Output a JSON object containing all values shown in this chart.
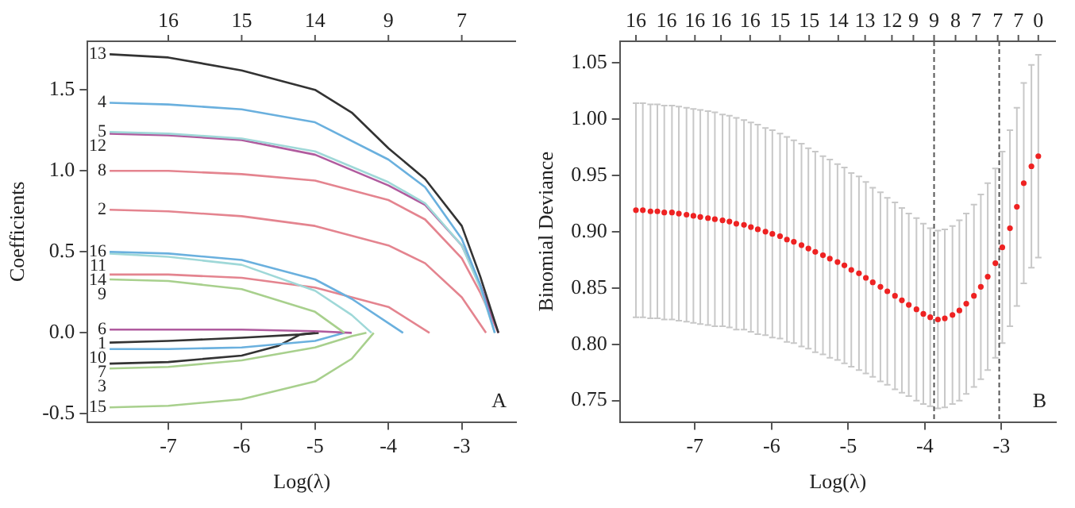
{
  "chart_data": [
    {
      "type": "line",
      "ylabel": "Coefficients",
      "xlabel": "Log(λ)",
      "xlim": [
        -8.1,
        -2.26
      ],
      "ylim": [
        -0.55,
        1.8
      ],
      "xticks": [
        -7,
        -6,
        -5,
        -4,
        -3
      ],
      "yticks": [
        {
          "value": -0.5,
          "label": "-0.5"
        },
        {
          "value": 0,
          "label": "0.0"
        },
        {
          "value": 0.5,
          "label": "0.5"
        },
        {
          "value": 1,
          "label": "1.0"
        },
        {
          "value": 1.5,
          "label": "1.5"
        }
      ],
      "grid": false,
      "legend": false,
      "marker": "none",
      "line_style": "solid",
      "annotations": [
        "A",
        {
          "text": "16",
          "x": -7
        },
        {
          "text": "15",
          "x": -6
        },
        {
          "text": "14",
          "x": -5
        },
        {
          "text": "9",
          "x": -4
        },
        {
          "text": "7",
          "x": -3
        }
      ],
      "series": [
        {
          "name": "13",
          "color": "#333333",
          "x": [
            -7.8,
            -7,
            -6,
            -5,
            -4.5,
            -4,
            -3.5,
            -3,
            -2.75,
            -2.5
          ],
          "values": [
            1.72,
            1.7,
            1.62,
            1.5,
            1.36,
            1.14,
            0.95,
            0.66,
            0.35,
            0
          ]
        },
        {
          "name": "4",
          "color": "#6ab0de",
          "x": [
            -7.8,
            -7,
            -6,
            -5,
            -4,
            -3.5,
            -3,
            -2.75,
            -2.55
          ],
          "values": [
            1.42,
            1.41,
            1.38,
            1.3,
            1.07,
            0.9,
            0.58,
            0.3,
            0
          ]
        },
        {
          "name": "5",
          "color": "#9fd8d8",
          "x": [
            -7.8,
            -7,
            -6,
            -5,
            -4,
            -3.5,
            -3,
            -2.75,
            -2.55
          ],
          "values": [
            1.24,
            1.23,
            1.2,
            1.12,
            0.93,
            0.8,
            0.54,
            0.28,
            0
          ]
        },
        {
          "name": "12",
          "color": "#b05b9e",
          "x": [
            -7.8,
            -7,
            -6,
            -5,
            -4,
            -3.5,
            -3,
            -2.75,
            -2.5
          ],
          "values": [
            1.23,
            1.22,
            1.19,
            1.1,
            0.91,
            0.79,
            0.54,
            0.3,
            0
          ]
        },
        {
          "name": "8",
          "color": "#e4848f",
          "x": [
            -7.8,
            -7,
            -6,
            -5,
            -4,
            -3.5,
            -3,
            -2.75,
            -2.5
          ],
          "values": [
            1.0,
            1.0,
            0.98,
            0.94,
            0.82,
            0.7,
            0.46,
            0.25,
            0
          ]
        },
        {
          "name": "2",
          "color": "#e4848f",
          "x": [
            -7.8,
            -7,
            -6,
            -5,
            -4,
            -3.5,
            -3,
            -2.67
          ],
          "values": [
            0.76,
            0.75,
            0.72,
            0.66,
            0.54,
            0.43,
            0.22,
            0
          ]
        },
        {
          "name": "16",
          "color": "#6ab0de",
          "x": [
            -7.8,
            -7,
            -6,
            -5,
            -4.5,
            -4,
            -3.8
          ],
          "values": [
            0.5,
            0.49,
            0.45,
            0.33,
            0.21,
            0.06,
            0
          ]
        },
        {
          "name": "11",
          "color": "#9fd8d8",
          "x": [
            -7.8,
            -7,
            -6,
            -5,
            -4.5,
            -4.23
          ],
          "values": [
            0.49,
            0.47,
            0.42,
            0.26,
            0.11,
            0
          ]
        },
        {
          "name": "14",
          "color": "#e4848f",
          "x": [
            -7.8,
            -7,
            -6,
            -5,
            -4,
            -3.44
          ],
          "values": [
            0.36,
            0.36,
            0.34,
            0.28,
            0.16,
            0
          ]
        },
        {
          "name": "9",
          "color": "#a8d08d",
          "x": [
            -7.8,
            -7,
            -6,
            -5,
            -4.6
          ],
          "values": [
            0.33,
            0.32,
            0.27,
            0.13,
            0
          ]
        },
        {
          "name": "6",
          "color": "#b05b9e",
          "x": [
            -7.8,
            -6,
            -5,
            -4.5
          ],
          "values": [
            0.02,
            0.02,
            0.01,
            0
          ]
        },
        {
          "name": "1",
          "color": "#333333",
          "x": [
            -7.8,
            -7,
            -6,
            -5.2,
            -4.95
          ],
          "values": [
            -0.06,
            -0.05,
            -0.03,
            -0.01,
            0
          ]
        },
        {
          "name": "10",
          "color": "#6ab0de",
          "x": [
            -7.8,
            -7,
            -6,
            -5,
            -4.6
          ],
          "values": [
            -0.1,
            -0.1,
            -0.09,
            -0.05,
            0
          ]
        },
        {
          "name": "7",
          "color": "#333333",
          "x": [
            -7.8,
            -7,
            -6,
            -5.5,
            -5.2,
            -5.0
          ],
          "values": [
            -0.19,
            -0.18,
            -0.14,
            -0.08,
            -0.01,
            0
          ]
        },
        {
          "name": "3",
          "color": "#a8d08d",
          "x": [
            -7.8,
            -7,
            -6,
            -5,
            -4.5,
            -4.3
          ],
          "values": [
            -0.22,
            -0.21,
            -0.17,
            -0.09,
            -0.02,
            0
          ]
        },
        {
          "name": "15",
          "color": "#a8d08d",
          "x": [
            -7.8,
            -7,
            -6,
            -5,
            -4.5,
            -4.2
          ],
          "values": [
            -0.46,
            -0.45,
            -0.41,
            -0.3,
            -0.16,
            0
          ]
        }
      ]
    },
    {
      "type": "scatter",
      "ylabel": "Binomial Deviance",
      "xlabel": "Log(λ)",
      "xlim": [
        -7.98,
        -2.29
      ],
      "ylim": [
        0.731,
        1.069
      ],
      "xticks": [
        -7,
        -6,
        -5,
        -4,
        -3
      ],
      "yticks": [
        0.75,
        {
          "value": 0.8,
          "label": "0.80"
        },
        0.85,
        {
          "value": 0.9,
          "label": "0.90"
        },
        0.95,
        {
          "value": 1,
          "label": "1.00"
        },
        1.05
      ],
      "grid": false,
      "legend": false,
      "marker": "circle",
      "color": "#ee2222",
      "annotations": [
        "B",
        {
          "text": "16",
          "x": -7.77
        },
        {
          "text": "16",
          "x": -7.37
        },
        {
          "text": "16",
          "x": -7.0
        },
        {
          "text": "16",
          "x": -6.66
        },
        {
          "text": "16",
          "x": -6.28
        },
        {
          "text": "15",
          "x": -5.89
        },
        {
          "text": "15",
          "x": -5.51
        },
        {
          "text": "14",
          "x": -5.13
        },
        {
          "text": "13",
          "x": -4.78
        },
        {
          "text": "12",
          "x": -4.43
        },
        {
          "text": "9",
          "x": -4.15
        },
        {
          "text": "9",
          "x": -3.88
        },
        {
          "text": "8",
          "x": -3.6
        },
        {
          "text": "7",
          "x": -3.33
        },
        {
          "text": "7",
          "x": -3.05
        },
        {
          "text": "7",
          "x": -2.78
        },
        {
          "text": "0",
          "x": -2.52
        }
      ],
      "ref_lines": [
        {
          "axis": "x",
          "value": -3.88,
          "color": "#555555",
          "line_style": "dashed"
        },
        {
          "axis": "x",
          "value": -3.03,
          "color": "#555555",
          "line_style": "dashed"
        }
      ],
      "x": [
        -7.77,
        -7.68,
        -7.58,
        -7.49,
        -7.4,
        -7.3,
        -7.21,
        -7.11,
        -7.02,
        -6.93,
        -6.83,
        -6.74,
        -6.64,
        -6.55,
        -6.46,
        -6.36,
        -6.27,
        -6.18,
        -6.08,
        -5.99,
        -5.89,
        -5.8,
        -5.71,
        -5.61,
        -5.52,
        -5.43,
        -5.33,
        -5.24,
        -5.14,
        -5.05,
        -4.96,
        -4.86,
        -4.77,
        -4.68,
        -4.58,
        -4.49,
        -4.39,
        -4.3,
        -4.21,
        -4.11,
        -4.02,
        -3.93,
        -3.83,
        -3.74,
        -3.64,
        -3.55,
        -3.46,
        -3.36,
        -3.27,
        -3.18,
        -3.08,
        -2.99,
        -2.89,
        -2.8,
        -2.71,
        -2.61,
        -2.52
      ],
      "values": [
        0.919,
        0.919,
        0.918,
        0.918,
        0.917,
        0.917,
        0.916,
        0.915,
        0.914,
        0.913,
        0.912,
        0.911,
        0.91,
        0.909,
        0.907,
        0.906,
        0.904,
        0.902,
        0.9,
        0.898,
        0.896,
        0.893,
        0.891,
        0.888,
        0.885,
        0.882,
        0.879,
        0.876,
        0.873,
        0.87,
        0.866,
        0.863,
        0.859,
        0.855,
        0.851,
        0.847,
        0.843,
        0.839,
        0.835,
        0.831,
        0.827,
        0.824,
        0.822,
        0.823,
        0.826,
        0.83,
        0.836,
        0.843,
        0.851,
        0.86,
        0.872,
        0.886,
        0.903,
        0.922,
        0.943,
        0.958,
        0.967
      ],
      "errors": [
        0.095,
        0.095,
        0.095,
        0.095,
        0.095,
        0.095,
        0.095,
        0.095,
        0.095,
        0.095,
        0.095,
        0.095,
        0.094,
        0.094,
        0.094,
        0.093,
        0.093,
        0.093,
        0.092,
        0.092,
        0.091,
        0.091,
        0.09,
        0.09,
        0.089,
        0.089,
        0.088,
        0.088,
        0.087,
        0.087,
        0.086,
        0.086,
        0.085,
        0.084,
        0.084,
        0.083,
        0.083,
        0.082,
        0.081,
        0.081,
        0.08,
        0.079,
        0.079,
        0.079,
        0.079,
        0.08,
        0.08,
        0.081,
        0.082,
        0.083,
        0.084,
        0.085,
        0.087,
        0.088,
        0.089,
        0.09,
        0.09
      ]
    }
  ]
}
